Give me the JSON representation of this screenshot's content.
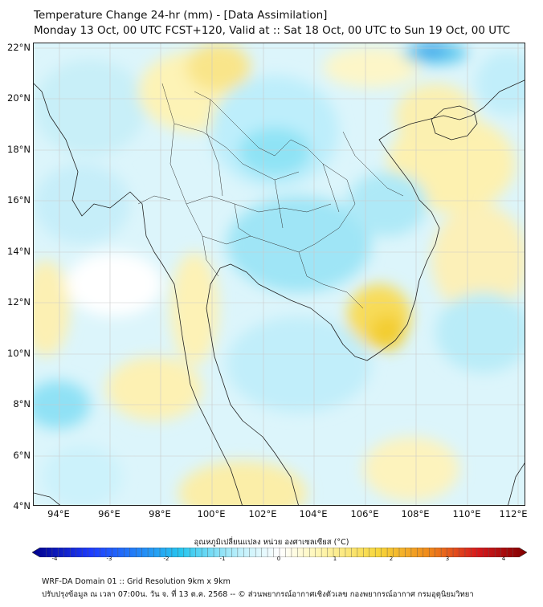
{
  "header": {
    "title": "Temperature Change 24-hr (mm) - [Data Assimilation]",
    "subtitle": "Monday 13 Oct, 00 UTC FCST+120, Valid at :: Sat 18 Oct, 00 UTC to Sun 19 Oct, 00 UTC"
  },
  "map": {
    "lat_labels": [
      "22°N",
      "20°N",
      "18°N",
      "16°N",
      "14°N",
      "12°N",
      "10°N",
      "8°N",
      "6°N",
      "4°N"
    ],
    "lon_labels": [
      "94°E",
      "96°E",
      "98°E",
      "100°E",
      "102°E",
      "104°E",
      "106°E",
      "108°E",
      "110°E",
      "112°E"
    ],
    "extent": {
      "lon_min": 93,
      "lon_max": 112.3,
      "lat_min": 4,
      "lat_max": 22.2
    }
  },
  "colorbar": {
    "title": "อุณหภูมิเปลี่ยนแปลง หน่วย องศาเซลเซียส (°C)",
    "ticks": [
      "-4",
      "-3",
      "-2",
      "-1",
      "0",
      "1",
      "2",
      "3",
      "4"
    ],
    "colors": {
      "dark_blue": "#00008b",
      "blue": "#1e3cff",
      "cyan": "#27c6ef",
      "light_cyan": "#bff0fb",
      "white": "#ffffff",
      "light_yellow": "#fff6b3",
      "yellow": "#f7d63a",
      "orange": "#f08a1a",
      "red": "#d7191c",
      "dark_red": "#7f0000"
    }
  },
  "footer": {
    "line1": "WRF-DA Domain 01 :: Grid Resolution 9km x 9km",
    "line2": "ปรับปรุงข้อมูล ณ เวลา 07:00น. วัน จ. ที่ 13 ต.ค. 2568 -- © ส่วนพยากรณ์อากาศเชิงตัวเลข กองพยากรณ์อากาศ กรมอุตุนิยมวิทยา"
  }
}
